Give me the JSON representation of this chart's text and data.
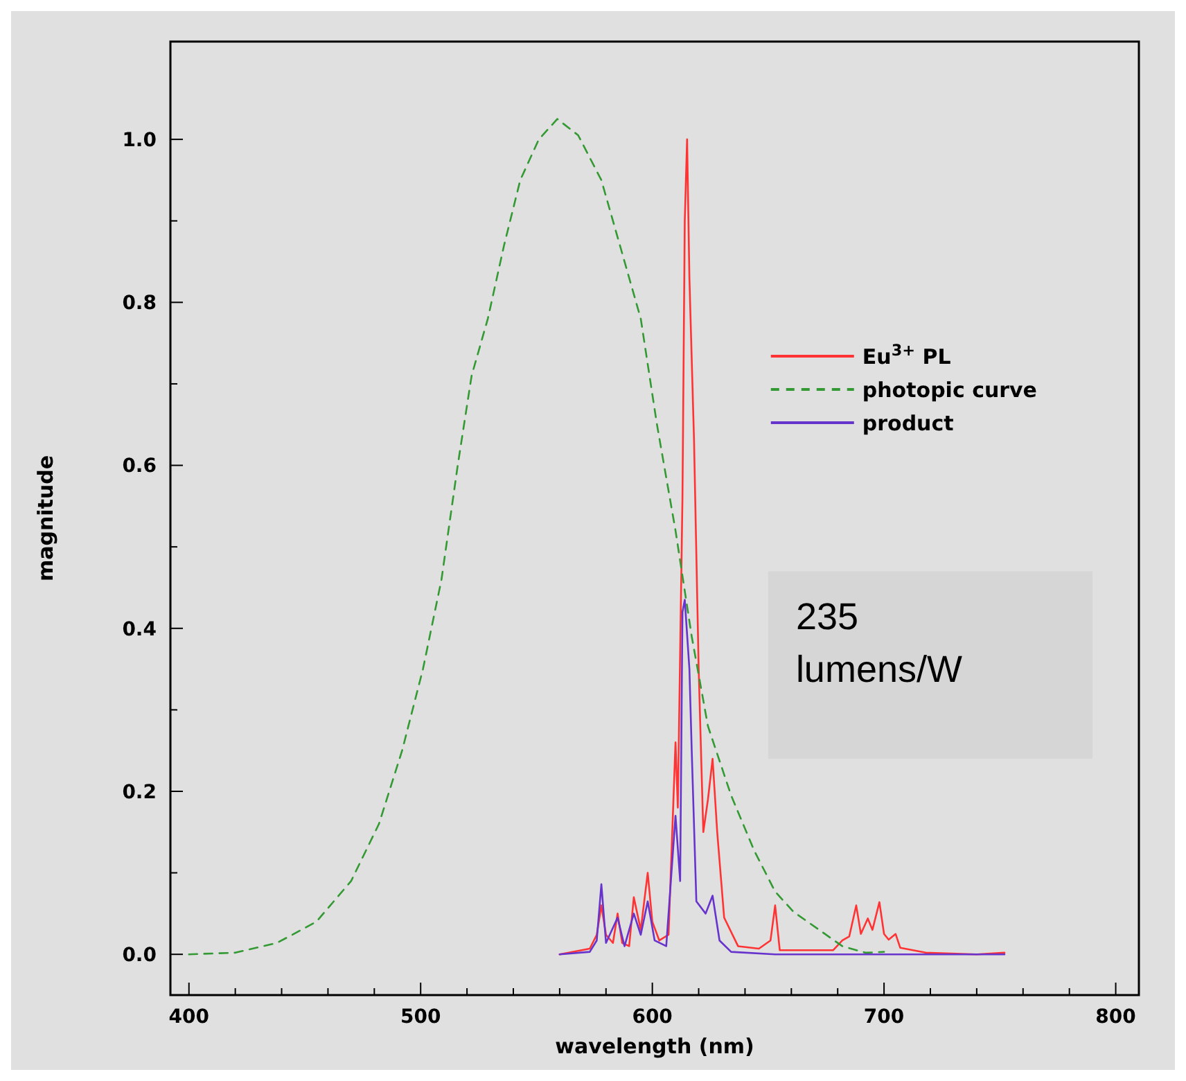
{
  "chart_data": {
    "type": "line",
    "xlabel": "wavelength (nm)",
    "ylabel": "magnitude",
    "xlim": [
      392,
      810
    ],
    "ylim": [
      -0.05,
      1.12
    ],
    "xticks": [
      400,
      {
        "value": 420,
        "label": null
      },
      {
        "value": 440,
        "label": null
      },
      {
        "value": 460,
        "label": null
      },
      {
        "value": 480,
        "label": null
      },
      500,
      {
        "value": 520,
        "label": null
      },
      {
        "value": 540,
        "label": null
      },
      {
        "value": 560,
        "label": null
      },
      {
        "value": 580,
        "label": null
      },
      600,
      {
        "value": 620,
        "label": null
      },
      {
        "value": 640,
        "label": null
      },
      {
        "value": 660,
        "label": null
      },
      {
        "value": 680,
        "label": null
      },
      700,
      {
        "value": 720,
        "label": null
      },
      {
        "value": 740,
        "label": null
      },
      {
        "value": 760,
        "label": null
      },
      {
        "value": 780,
        "label": null
      },
      800
    ],
    "yticks": [
      {
        "value": 0,
        "label": "0.0"
      },
      {
        "value": 0.1,
        "label": null
      },
      0.2,
      {
        "value": 0.3,
        "label": null
      },
      0.4,
      {
        "value": 0.5,
        "label": null
      },
      0.6,
      {
        "value": 0.7,
        "label": null
      },
      0.8,
      {
        "value": 0.9,
        "label": null
      },
      {
        "value": 1,
        "label": "1.0"
      }
    ],
    "legend": "right",
    "series": [
      {
        "name": "Eu$^{3+}$ PL",
        "color": "#ff3333",
        "line_style": "solid",
        "x": [
          560,
          573,
          576,
          578,
          580,
          583,
          585,
          587,
          590,
          592,
          595,
          598,
          600,
          603,
          607,
          610,
          611,
          613,
          614,
          615,
          616,
          618,
          620,
          622,
          624,
          626,
          628,
          631,
          637,
          646,
          651,
          653,
          655,
          678,
          682,
          685,
          688,
          690,
          693,
          695,
          698,
          700,
          702,
          705,
          707,
          718,
          740,
          752
        ],
        "values": [
          0,
          0.007,
          0.024,
          0.06,
          0.024,
          0.014,
          0.05,
          0.014,
          0.01,
          0.07,
          0.03,
          0.1,
          0.04,
          0.017,
          0.024,
          0.26,
          0.18,
          0.56,
          0.9,
          1.0,
          0.83,
          0.63,
          0.35,
          0.15,
          0.19,
          0.24,
          0.15,
          0.045,
          0.01,
          0.007,
          0.017,
          0.06,
          0.005,
          0.005,
          0.017,
          0.022,
          0.06,
          0.025,
          0.044,
          0.03,
          0.064,
          0.025,
          0.018,
          0.025,
          0.008,
          0.002,
          0,
          0.002
        ]
      },
      {
        "name": "photopic curve",
        "color": "#339933",
        "line_style": "dashed",
        "x": [
          400,
          420,
          438,
          455,
          470,
          482,
          492,
          501,
          509,
          516,
          522,
          529,
          536,
          543,
          551,
          559,
          568,
          578,
          587,
          595,
          602,
          610,
          617,
          624,
          634,
          644,
          653,
          661,
          672,
          682,
          692,
          700
        ],
        "values": [
          0,
          0.002,
          0.014,
          0.04,
          0.09,
          0.16,
          0.25,
          0.35,
          0.46,
          0.6,
          0.71,
          0.78,
          0.87,
          0.95,
          1.0,
          1.025,
          1.005,
          0.95,
          0.86,
          0.78,
          0.65,
          0.52,
          0.39,
          0.28,
          0.195,
          0.127,
          0.077,
          0.052,
          0.03,
          0.01,
          0.002,
          0.003
        ]
      },
      {
        "name": "product",
        "color": "#6633cc",
        "line_style": "solid",
        "x": [
          560,
          573,
          576,
          578,
          580,
          585,
          588,
          592,
          595,
          598,
          601,
          606,
          610,
          612,
          613,
          614,
          616,
          617,
          619,
          623,
          626,
          629,
          634,
          653,
          700,
          752
        ],
        "values": [
          0,
          0.003,
          0.017,
          0.086,
          0.014,
          0.045,
          0.01,
          0.05,
          0.024,
          0.065,
          0.017,
          0.01,
          0.17,
          0.09,
          0.42,
          0.435,
          0.35,
          0.25,
          0.065,
          0.05,
          0.072,
          0.017,
          0.003,
          0,
          0,
          0
        ]
      }
    ],
    "annotations": [
      "235\nlumens/W"
    ]
  }
}
